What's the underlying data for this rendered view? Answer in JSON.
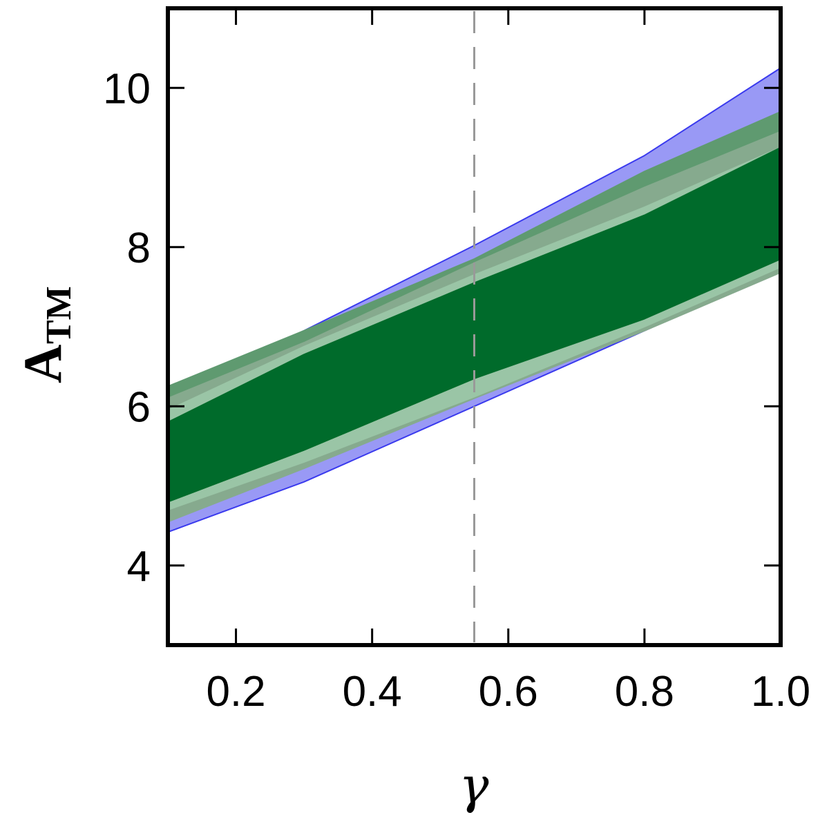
{
  "chart_data": {
    "type": "area",
    "xlabel": "γ",
    "ylabel": "A",
    "ylabel_subscript": "TM",
    "xlim": [
      0.1,
      1.0
    ],
    "ylim": [
      3.0,
      11.0
    ],
    "x_ticks": [
      0.2,
      0.4,
      0.6,
      0.8,
      1.0
    ],
    "x_tick_labels": [
      "0.2",
      "0.4",
      "0.6",
      "0.8",
      "1.0"
    ],
    "y_ticks": [
      4,
      6,
      8,
      10
    ],
    "y_tick_labels": [
      "4",
      "6",
      "8",
      "10"
    ],
    "grid": false,
    "vline": {
      "x": 0.55,
      "style": "dashed",
      "color": "#999999"
    },
    "x": [
      0.1,
      0.3,
      0.55,
      0.8,
      1.0
    ],
    "bands": [
      {
        "color": "#9999f5",
        "edge": "#3a3aee",
        "lower": [
          4.42,
          5.05,
          6.0,
          6.95,
          7.72
        ],
        "upper": [
          6.15,
          6.95,
          8.02,
          9.15,
          10.25
        ]
      },
      {
        "color": "#5f9a70",
        "edge": "#5f9a70",
        "lower": [
          4.65,
          5.3,
          6.2,
          7.0,
          7.72
        ],
        "upper": [
          6.25,
          6.95,
          7.85,
          8.95,
          9.7
        ]
      },
      {
        "color": "#86aa8e",
        "edge": "#86aa8e",
        "lower": [
          4.55,
          5.22,
          6.1,
          6.95,
          7.68
        ],
        "upper": [
          6.1,
          6.8,
          7.8,
          8.75,
          9.45
        ]
      },
      {
        "color": "#9ac5a6",
        "edge": "#9ac5a6",
        "lower": [
          4.7,
          5.3,
          6.12,
          7.0,
          7.75
        ],
        "upper": [
          5.95,
          6.75,
          7.65,
          8.5,
          9.25
        ]
      },
      {
        "color": "#1b8a2e",
        "edge": "#1b8a2e",
        "lower": [
          4.8,
          5.45,
          6.35,
          7.25,
          8.0
        ],
        "upper": [
          5.8,
          6.6,
          7.5,
          8.35,
          9.2
        ]
      },
      {
        "color": "#006b2b",
        "edge": "#006b2b",
        "lower": [
          4.8,
          5.45,
          6.35,
          7.1,
          7.85
        ],
        "upper": [
          5.8,
          6.65,
          7.55,
          8.4,
          9.25
        ]
      }
    ]
  }
}
